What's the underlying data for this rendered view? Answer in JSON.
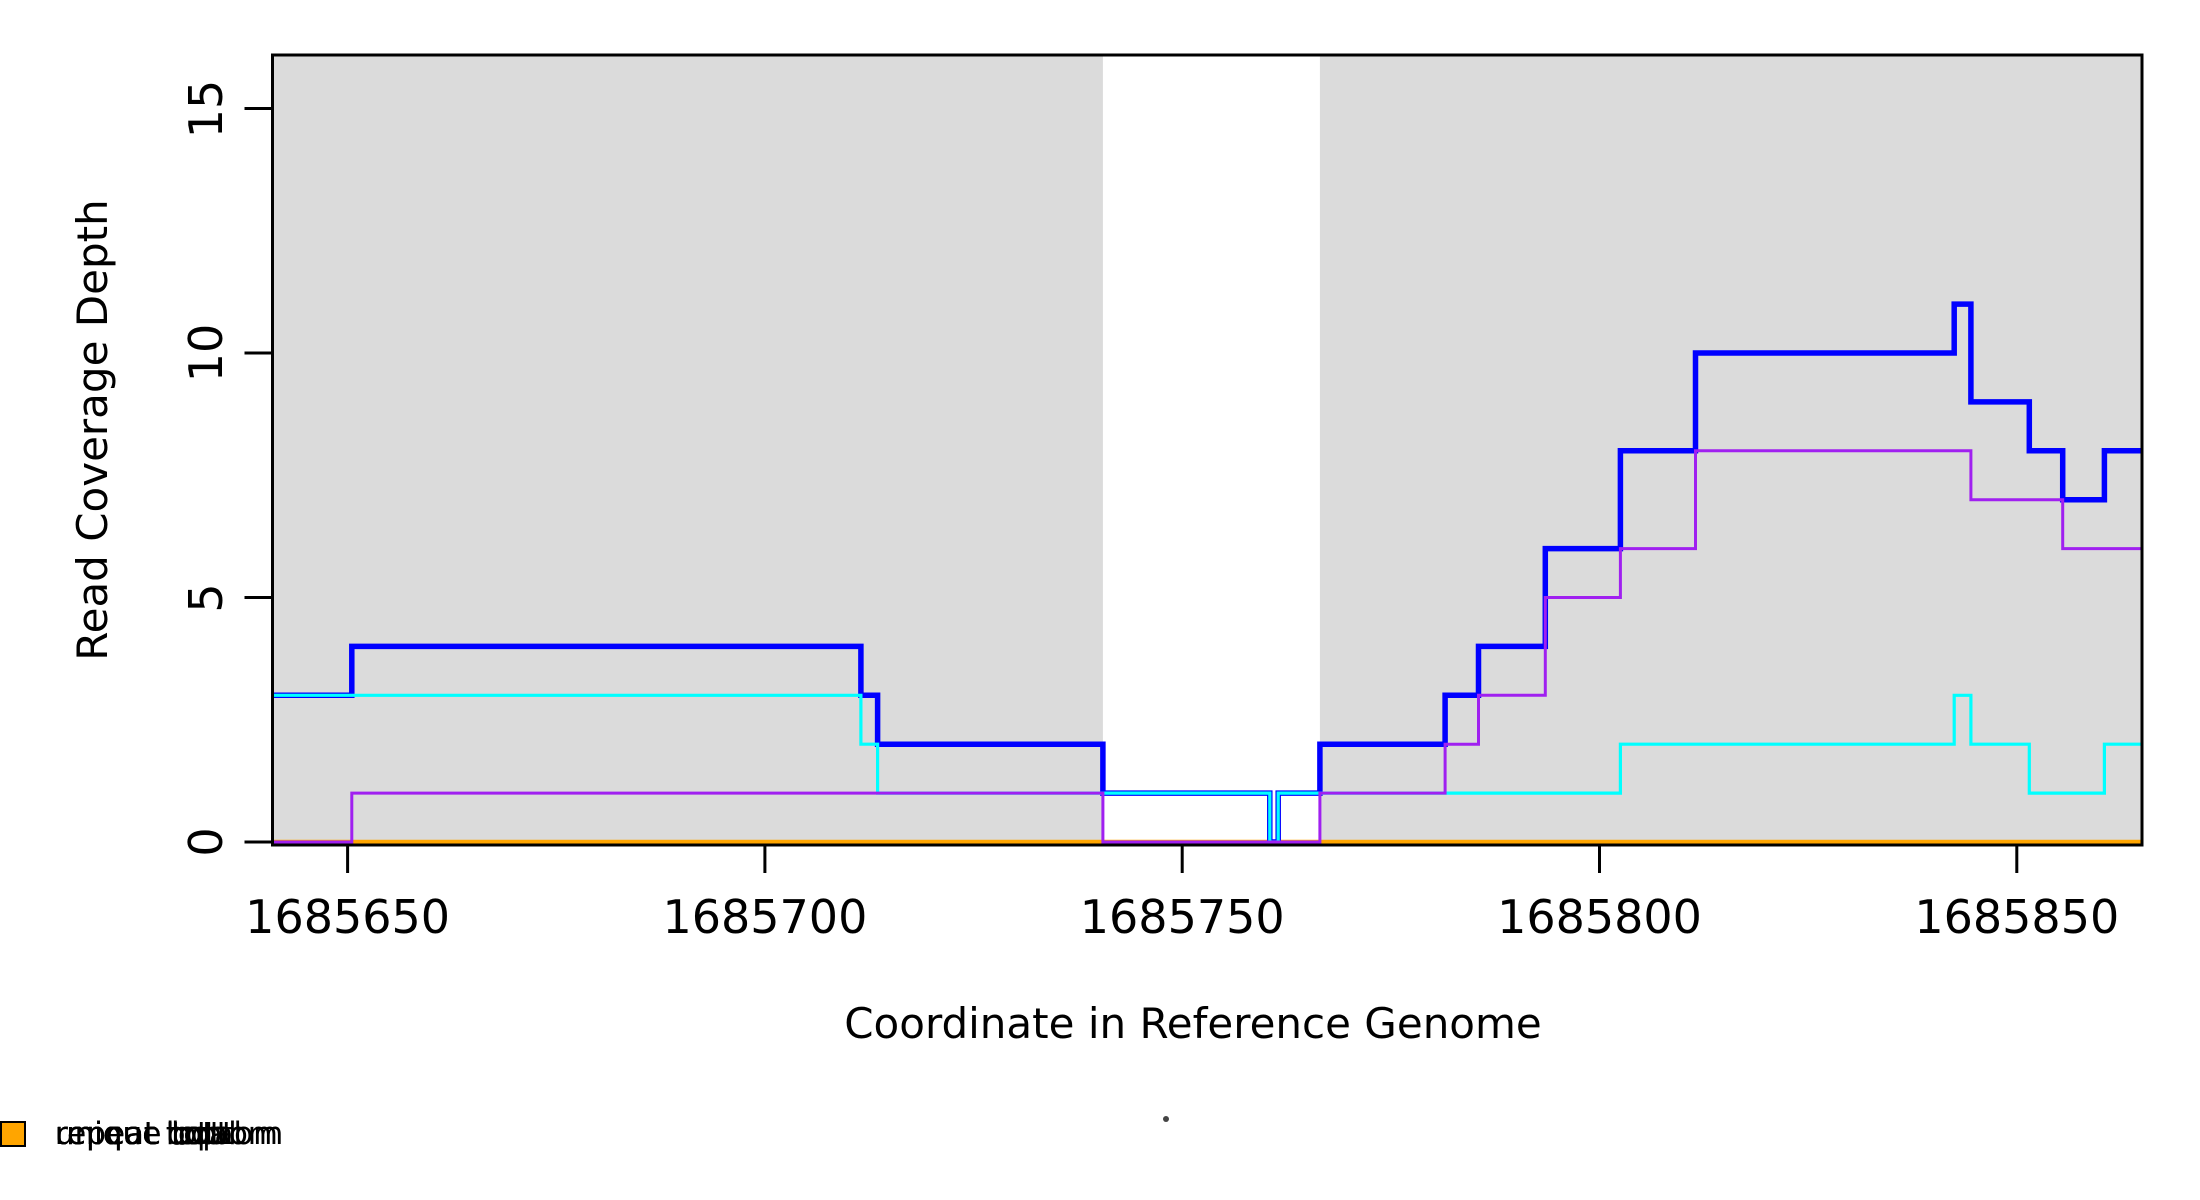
{
  "figure": {
    "x_axis_title": "Coordinate in Reference Genome",
    "y_axis_title": "Read Coverage Depth",
    "background_color": "#FFFFFF",
    "shade_color": "#DBDBDB"
  },
  "axes": {
    "x_tick_labels": [
      "1685650",
      "1685700",
      "1685750",
      "1685800",
      "1685850"
    ],
    "y_tick_labels": [
      "0",
      "5",
      "10",
      "15"
    ]
  },
  "legend": {
    "items": [
      {
        "label": "unique total",
        "color": "#0000FF"
      },
      {
        "label": "unique top",
        "color": "#00FFFF"
      },
      {
        "label": "unique bottom",
        "color": "#A020F0"
      },
      {
        "label": "repeat total",
        "color": "#FF0000"
      },
      {
        "label": "repeat top",
        "color": "#FFFF00"
      },
      {
        "label": "repeat bottom",
        "color": "#FFA500"
      }
    ]
  },
  "chart_data": {
    "type": "line",
    "subtype": "step-post",
    "title": "",
    "xlabel": "Coordinate in Reference Genome",
    "ylabel": "Read Coverage Depth",
    "xlim": [
      1685641,
      1685865
    ],
    "ylim": [
      0,
      16.2
    ],
    "x_ticks": [
      1685650,
      1685700,
      1685750,
      1685800,
      1685850
    ],
    "y_ticks": [
      0,
      5,
      10,
      15
    ],
    "grid": false,
    "legend_position": "bottom",
    "shade_color": "#DBDBDB",
    "shaded_regions": [
      [
        1685641,
        1685740.5
      ],
      [
        1685766.5,
        1685865
      ]
    ],
    "series": [
      {
        "name": "repeat total",
        "color": "#FF0000",
        "width": 3,
        "start_value": 0,
        "steps": []
      },
      {
        "name": "repeat top",
        "color": "#FFFF00",
        "width": 3,
        "start_value": 0,
        "steps": []
      },
      {
        "name": "repeat bottom",
        "color": "#FFA500",
        "width": 4.5,
        "start_value": 0,
        "steps": []
      },
      {
        "name": "unique total",
        "color": "#0000FF",
        "width": 5.5,
        "start_value": 3,
        "steps": [
          [
            1685650.5,
            4
          ],
          [
            1685711.5,
            3
          ],
          [
            1685713.5,
            2
          ],
          [
            1685740.5,
            1
          ],
          [
            1685760.5,
            0
          ],
          [
            1685761.5,
            1
          ],
          [
            1685766.5,
            2
          ],
          [
            1685781.5,
            3
          ],
          [
            1685785.5,
            4
          ],
          [
            1685793.5,
            6
          ],
          [
            1685802.5,
            8
          ],
          [
            1685811.5,
            10
          ],
          [
            1685842.5,
            11
          ],
          [
            1685844.5,
            9
          ],
          [
            1685851.5,
            8
          ],
          [
            1685855.5,
            7
          ],
          [
            1685860.5,
            8
          ]
        ]
      },
      {
        "name": "unique top",
        "color": "#00FFFF",
        "width": 3.2,
        "start_value": 3,
        "steps": [
          [
            1685711.5,
            2
          ],
          [
            1685713.5,
            1
          ],
          [
            1685760.5,
            0
          ],
          [
            1685761.5,
            1
          ],
          [
            1685802.5,
            2
          ],
          [
            1685842.5,
            3
          ],
          [
            1685844.5,
            2
          ],
          [
            1685851.5,
            1
          ],
          [
            1685860.5,
            2
          ]
        ]
      },
      {
        "name": "unique bottom",
        "color": "#A020F0",
        "width": 3,
        "start_value": 0,
        "steps": [
          [
            1685650.5,
            1
          ],
          [
            1685740.5,
            0
          ],
          [
            1685766.5,
            1
          ],
          [
            1685781.5,
            2
          ],
          [
            1685785.5,
            3
          ],
          [
            1685793.5,
            5
          ],
          [
            1685802.5,
            6
          ],
          [
            1685811.5,
            8
          ],
          [
            1685844.5,
            7
          ],
          [
            1685855.5,
            6
          ]
        ]
      }
    ]
  }
}
